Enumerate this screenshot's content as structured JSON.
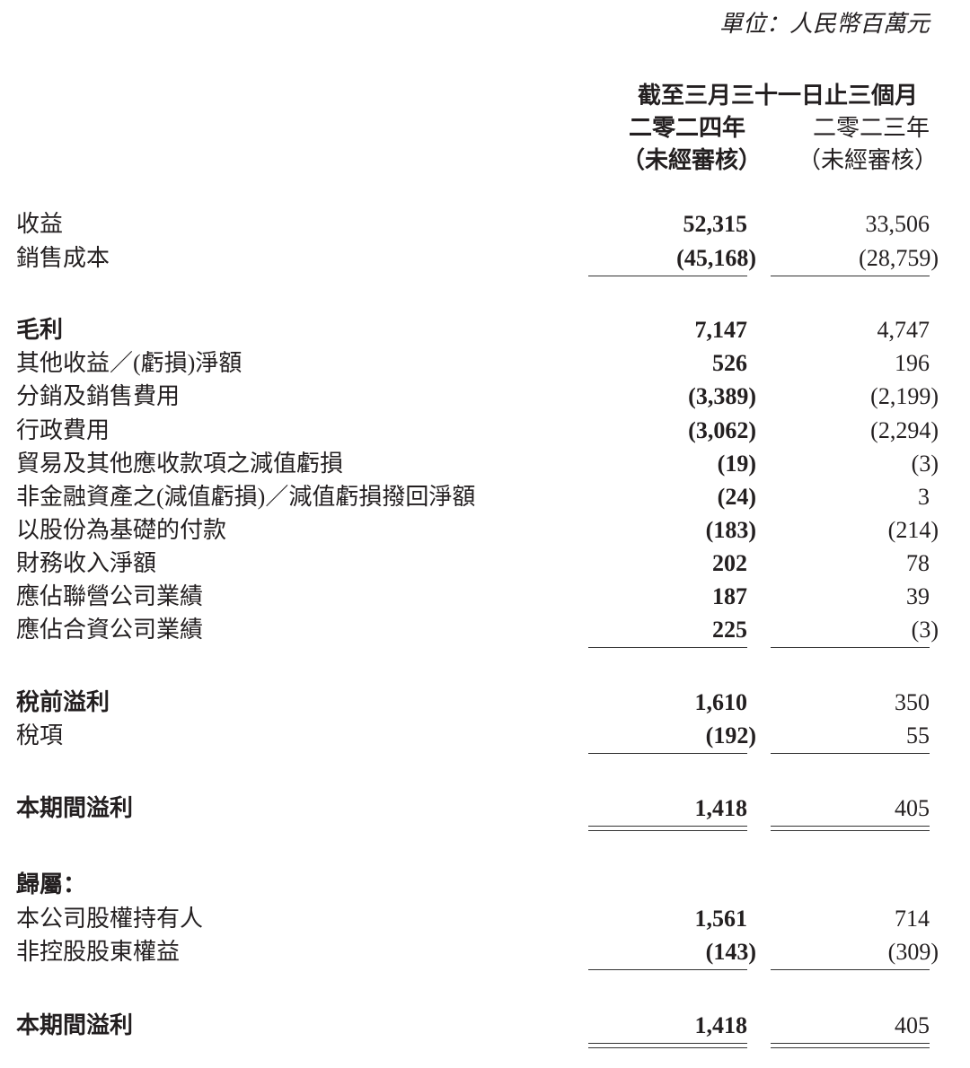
{
  "unit": "單位：人民幣百萬元",
  "header": {
    "period": "截至三月三十一日止三個月",
    "col1_year": "二零二四年",
    "col1_note": "（未經審核）",
    "col2_year": "二零二三年",
    "col2_note": "（未經審核）"
  },
  "rows": [
    {
      "label": "收益",
      "v2024": "52,315",
      "v2023": "33,506",
      "bold": false
    },
    {
      "label": "銷售成本",
      "v2024": "(45,168)",
      "v2023": "(28,759)",
      "bold": false,
      "rule": "single"
    },
    {
      "label": "毛利",
      "v2024": "7,147",
      "v2023": "4,747",
      "bold": true
    },
    {
      "label": "其他收益／(虧損)淨額",
      "v2024": "526",
      "v2023": "196",
      "bold": false
    },
    {
      "label": "分銷及銷售費用",
      "v2024": "(3,389)",
      "v2023": "(2,199)",
      "bold": false
    },
    {
      "label": "行政費用",
      "v2024": "(3,062)",
      "v2023": "(2,294)",
      "bold": false
    },
    {
      "label": "貿易及其他應收款項之減值虧損",
      "v2024": "(19)",
      "v2023": "(3)",
      "bold": false
    },
    {
      "label": "非金融資產之(減值虧損)／減值虧損撥回淨額",
      "v2024": "(24)",
      "v2023": "3",
      "bold": false
    },
    {
      "label": "以股份為基礎的付款",
      "v2024": "(183)",
      "v2023": "(214)",
      "bold": false
    },
    {
      "label": "財務收入淨額",
      "v2024": "202",
      "v2023": "78",
      "bold": false
    },
    {
      "label": "應佔聯營公司業績",
      "v2024": "187",
      "v2023": "39",
      "bold": false
    },
    {
      "label": "應佔合資公司業績",
      "v2024": "225",
      "v2023": "(3)",
      "bold": false,
      "rule": "single"
    },
    {
      "label": "稅前溢利",
      "v2024": "1,610",
      "v2023": "350",
      "bold": true
    },
    {
      "label": "稅項",
      "v2024": "(192)",
      "v2023": "55",
      "bold": false,
      "rule": "single"
    },
    {
      "label": "本期間溢利",
      "v2024": "1,418",
      "v2023": "405",
      "bold": true,
      "rule": "double"
    },
    {
      "label": "歸屬：",
      "v2024": "",
      "v2023": "",
      "bold": true
    },
    {
      "label": "本公司股權持有人",
      "v2024": "1,561",
      "v2023": "714",
      "bold": false
    },
    {
      "label": "非控股股東權益",
      "v2024": "(143)",
      "v2023": "(309)",
      "bold": false,
      "rule": "single"
    },
    {
      "label": "本期間溢利",
      "v2024": "1,418",
      "v2023": "405",
      "bold": true,
      "rule": "double"
    }
  ]
}
